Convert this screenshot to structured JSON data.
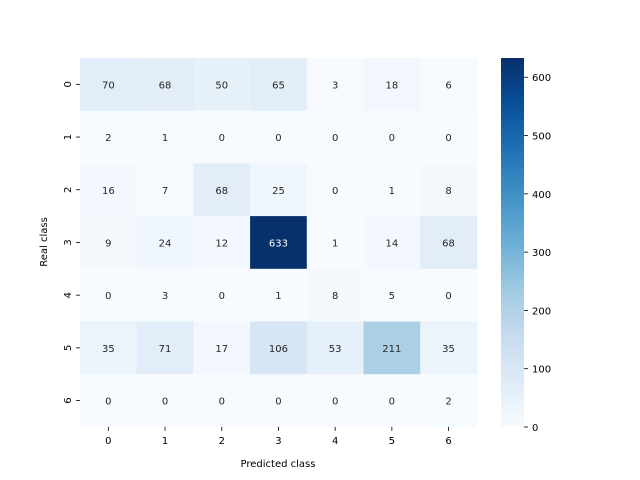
{
  "chart_data": {
    "type": "heatmap",
    "title": "",
    "xlabel": "Predicted class",
    "ylabel": "Real class",
    "x_categories": [
      "0",
      "1",
      "2",
      "3",
      "4",
      "5",
      "6"
    ],
    "y_categories": [
      "0",
      "1",
      "2",
      "3",
      "4",
      "5",
      "6"
    ],
    "values": [
      [
        70,
        68,
        50,
        65,
        3,
        18,
        6
      ],
      [
        2,
        1,
        0,
        0,
        0,
        0,
        0
      ],
      [
        16,
        7,
        68,
        25,
        0,
        1,
        8
      ],
      [
        9,
        24,
        12,
        633,
        1,
        14,
        68
      ],
      [
        0,
        3,
        0,
        1,
        8,
        5,
        0
      ],
      [
        35,
        71,
        17,
        106,
        53,
        211,
        35
      ],
      [
        0,
        0,
        0,
        0,
        0,
        0,
        2
      ]
    ],
    "colormap": "Blues",
    "colorbar": {
      "min": 0,
      "max": 633,
      "ticks": [
        0,
        100,
        200,
        300,
        400,
        500,
        600
      ]
    },
    "grid": false,
    "legend": "none"
  }
}
